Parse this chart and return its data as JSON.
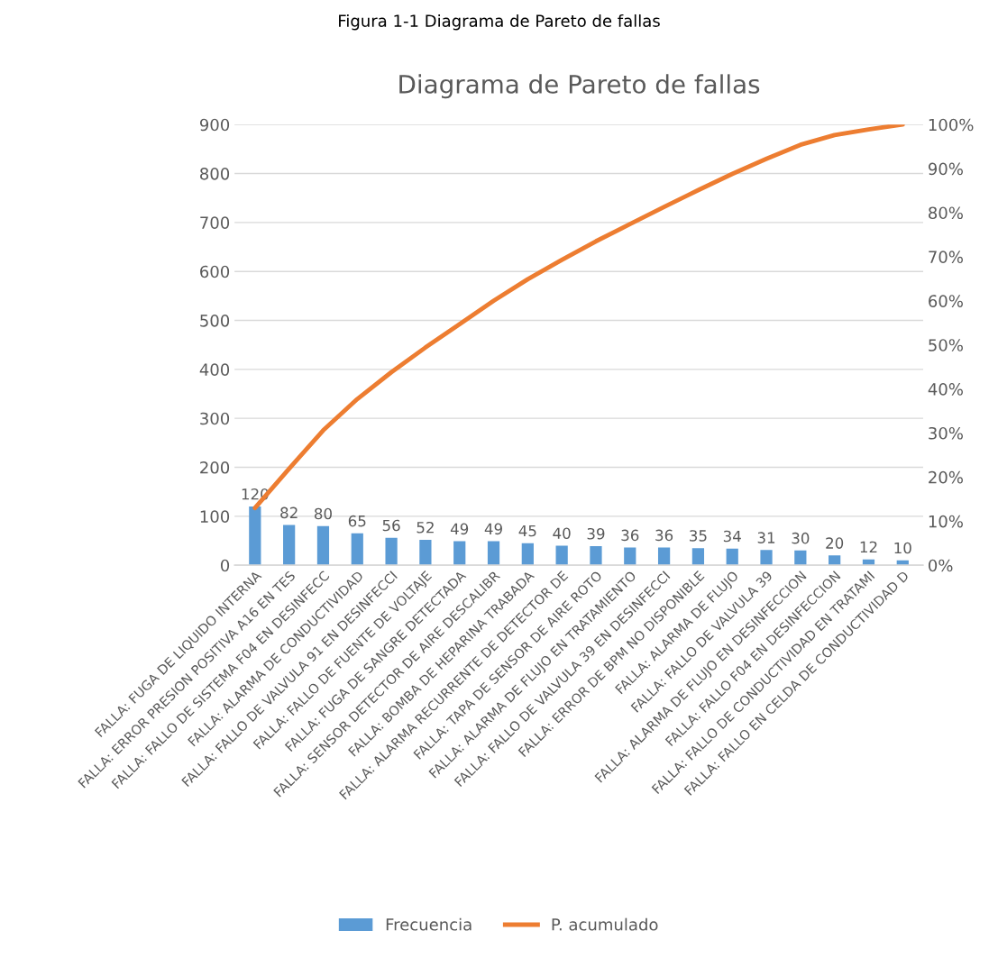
{
  "chart_data": {
    "type": "bar",
    "title": "Diagrama de Pareto de fallas",
    "annotations": [
      "Figura 1-1 Diagrama de Pareto de fallas"
    ],
    "categories": [
      "FALLA: FUGA DE LIQUIDO INTERNA",
      "FALLA: ERROR PRESION POSITIVA A16 EN TES",
      "FALLA: FALLO DE SISTEMA F04 EN DESINFECC",
      "FALLA: ALARMA DE CONDUCTIVIDAD",
      "FALLA: FALLO DE VALVULA 91 EN DESINFECCI",
      "FALLA: FALLO DE FUENTE DE VOLTAJE",
      "FALLA: FUGA DE SANGRE DETECTADA",
      "FALLA: SENSOR DETECTOR DE AIRE DESCALIBR",
      "FALLA: BOMBA DE HEPARINA TRABADA",
      "FALLA: ALARMA RECURRENTE DE DETECTOR DE",
      "FALLA: TAPA DE SENSOR DE AIRE ROTO",
      "FALLA: ALARMA DE FLUJO EN TRATAMIENTO",
      "FALLA: FALLO DE VALVULA 39 EN DESINFECCI",
      "FALLA: ERROR DE BPM NO DISPONIBLE",
      "FALLA: ALARMA DE FLUJO",
      "FALLA: FALLO DE VALVULA 39",
      "FALLA: ALARMA DE FLUJO EN DESINFECCION",
      "FALLA: FALLO F04 EN DESINFECCION",
      "FALLA: FALLO DE CONDUCTIVIDAD EN TRATAMI",
      "FALLA: FALLO EN CELDA DE CONDUCTIVIDAD D"
    ],
    "series": [
      {
        "name": "Frecuencia",
        "color": "#5b9bd5",
        "data_labels": true,
        "values": [
          120,
          82,
          80,
          65,
          56,
          52,
          49,
          49,
          45,
          40,
          39,
          36,
          36,
          35,
          34,
          31,
          30,
          20,
          12,
          10
        ]
      },
      {
        "name": "P. acumulado",
        "type": "line",
        "axis": "y2",
        "color": "#ed7d31",
        "values": [
          13.0,
          21.9,
          30.6,
          37.7,
          43.8,
          49.4,
          54.7,
          60.0,
          64.9,
          69.3,
          73.5,
          77.4,
          81.3,
          85.1,
          88.8,
          92.2,
          95.4,
          97.6,
          98.9,
          100
        ]
      }
    ],
    "ylim": [
      0,
      900
    ],
    "yticks": [
      0,
      100,
      200,
      300,
      400,
      500,
      600,
      700,
      800,
      900
    ],
    "y2lim": [
      0,
      100
    ],
    "y2ticks": [
      {
        "value": 0,
        "label": "0%"
      },
      {
        "value": 10,
        "label": "10%"
      },
      {
        "value": 20,
        "label": "20%"
      },
      {
        "value": 30,
        "label": "30%"
      },
      {
        "value": 40,
        "label": "40%"
      },
      {
        "value": 50,
        "label": "50%"
      },
      {
        "value": 60,
        "label": "60%"
      },
      {
        "value": 70,
        "label": "70%"
      },
      {
        "value": 80,
        "label": "80%"
      },
      {
        "value": 90,
        "label": "90%"
      },
      {
        "value": 100,
        "label": "100%"
      }
    ],
    "grid": "y",
    "legend": "bottom",
    "marker": "none",
    "line_style": "solid"
  }
}
